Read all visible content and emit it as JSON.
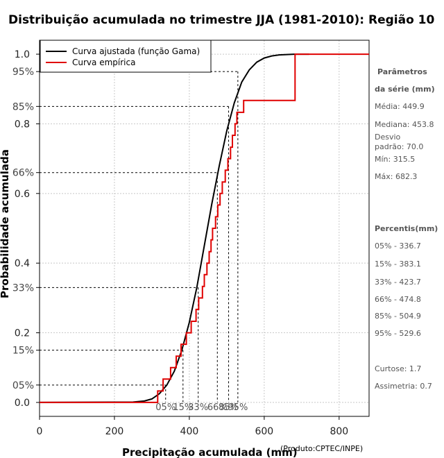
{
  "chart_data": {
    "type": "line",
    "title": "Distribuição acumulada no trimestre JJA (1981-2010): Região 10",
    "xlabel": "Precipitação acumulada (mm)",
    "ylabel": "Probabilidade acumulada",
    "xlim": [
      0,
      880
    ],
    "ylim": [
      -0.04,
      1.04
    ],
    "x_ticks": [
      0,
      200,
      400,
      600,
      800
    ],
    "x_tick_labels": [
      "0",
      "200",
      "400",
      "600",
      "800"
    ],
    "y_ticks": [
      0.0,
      0.2,
      0.4,
      0.6,
      0.8,
      1.0
    ],
    "y_tick_labels": [
      "0.0",
      "0.2",
      "0.4",
      "0.6",
      "0.8",
      "1.0"
    ],
    "percentile_ticks": [
      0.05,
      0.15,
      0.33,
      0.66,
      0.85,
      0.95
    ],
    "percentile_tick_labels": [
      "05%",
      "15%",
      "33%",
      "66%",
      "85%",
      "95%"
    ],
    "grid": true,
    "legend": {
      "position": "top-left",
      "entries": [
        {
          "label": "Curva ajustada (função Gama)",
          "color": "#000000"
        },
        {
          "label": "Curva empírica",
          "color": "#e00000"
        }
      ]
    },
    "series": [
      {
        "name": "Curva ajustada (função Gama)",
        "color": "#000000",
        "x": [
          0,
          250,
          280,
          300,
          320,
          340,
          360,
          380,
          400,
          420,
          440,
          460,
          480,
          500,
          520,
          540,
          560,
          580,
          600,
          620,
          640,
          680,
          720
        ],
        "y": [
          0,
          0.001,
          0.004,
          0.01,
          0.025,
          0.05,
          0.09,
          0.15,
          0.23,
          0.33,
          0.45,
          0.57,
          0.68,
          0.78,
          0.86,
          0.92,
          0.955,
          0.977,
          0.989,
          0.995,
          0.998,
          1.0,
          1.0
        ]
      },
      {
        "name": "Curva empírica",
        "color": "#e00000",
        "type": "step",
        "x": [
          315.5,
          330,
          350,
          365,
          378,
          392,
          405,
          418,
          425,
          435,
          440,
          447,
          453,
          458,
          462,
          470,
          476,
          482,
          488,
          496,
          503,
          510,
          515,
          522,
          527,
          545,
          682.3
        ],
        "y": [
          0.033,
          0.067,
          0.1,
          0.133,
          0.167,
          0.2,
          0.233,
          0.267,
          0.3,
          0.333,
          0.367,
          0.4,
          0.433,
          0.467,
          0.5,
          0.533,
          0.567,
          0.6,
          0.633,
          0.667,
          0.7,
          0.733,
          0.767,
          0.8,
          0.833,
          0.867,
          1.0
        ],
        "x_start": 0,
        "x_end": 880
      }
    ],
    "percentile_markers": [
      {
        "label": "05%",
        "p": 0.05,
        "x": 336.7
      },
      {
        "label": "15%",
        "p": 0.15,
        "x": 383.1
      },
      {
        "label": "33%",
        "p": 0.33,
        "x": 423.7
      },
      {
        "label": "66%",
        "p": 0.66,
        "x": 474.8
      },
      {
        "label": "85%",
        "p": 0.85,
        "x": 504.9
      },
      {
        "label": "95%",
        "p": 0.95,
        "x": 529.6
      }
    ],
    "credit": "(Produto:CPTEC/INPE)"
  },
  "sidebar": {
    "params_title_1": "Parâmetros",
    "params_title_2": "da série (mm)",
    "media": "Média: 449.9",
    "mediana": "Mediana: 453.8",
    "desvio_1": "Desvio",
    "desvio_2": "padrão: 70.0",
    "min": "Mín: 315.5",
    "max": "Máx: 682.3",
    "percentis_title": "Percentis(mm)",
    "p05": "05% - 336.7",
    "p15": "15% - 383.1",
    "p33": "33% - 423.7",
    "p66": "66% - 474.8",
    "p85": "85% - 504.9",
    "p95": "95% - 529.6",
    "curtose": "Curtose: 1.7",
    "assimetria": "Assimetria: 0.7"
  }
}
